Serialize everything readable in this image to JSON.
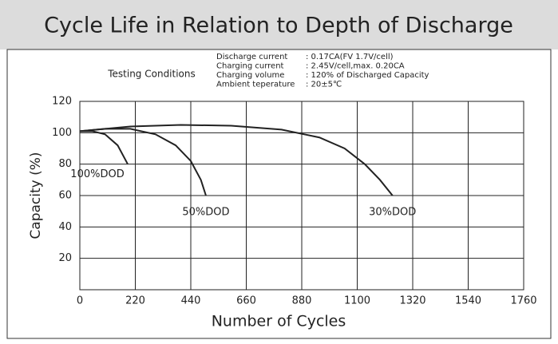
{
  "chart_data": {
    "type": "line",
    "title": "Cycle Life in Relation to Depth of Discharge",
    "testing_conditions": {
      "title": "Testing Conditions",
      "rows": [
        [
          "Discharge current",
          ": 0.17CA(FV 1.7V/cell)"
        ],
        [
          "Charging current",
          ": 2.45V/cell,max. 0.20CA"
        ],
        [
          "Charging volume",
          ": 120% of Discharged Capacity"
        ],
        [
          "Ambient teperature",
          ": 20±5℃"
        ]
      ]
    },
    "x_label": "Number of Cycles",
    "y_label": "Capacity (%)",
    "xlim": [
      0,
      1760
    ],
    "xticks": [
      0,
      220,
      440,
      660,
      880,
      1100,
      1320,
      1540,
      1760
    ],
    "ylim": [
      0,
      120
    ],
    "yticks": [
      20,
      40,
      60,
      80,
      100,
      120
    ],
    "grid": true,
    "series": [
      {
        "name": "100%DOD",
        "color": "#222222",
        "x": [
          0,
          50,
          100,
          150,
          190
        ],
        "values": [
          101,
          101,
          99,
          92,
          80
        ]
      },
      {
        "name": "50%DOD",
        "color": "#222222",
        "x": [
          0,
          100,
          200,
          300,
          380,
          440,
          480,
          500
        ],
        "values": [
          101,
          102.5,
          102.5,
          99,
          92,
          82,
          70,
          60
        ]
      },
      {
        "name": "30%DOD",
        "color": "#222222",
        "x": [
          0,
          200,
          400,
          600,
          800,
          950,
          1050,
          1130,
          1190,
          1240
        ],
        "values": [
          101,
          104,
          105,
          104.5,
          102,
          97,
          90,
          80,
          70,
          60
        ]
      }
    ]
  }
}
